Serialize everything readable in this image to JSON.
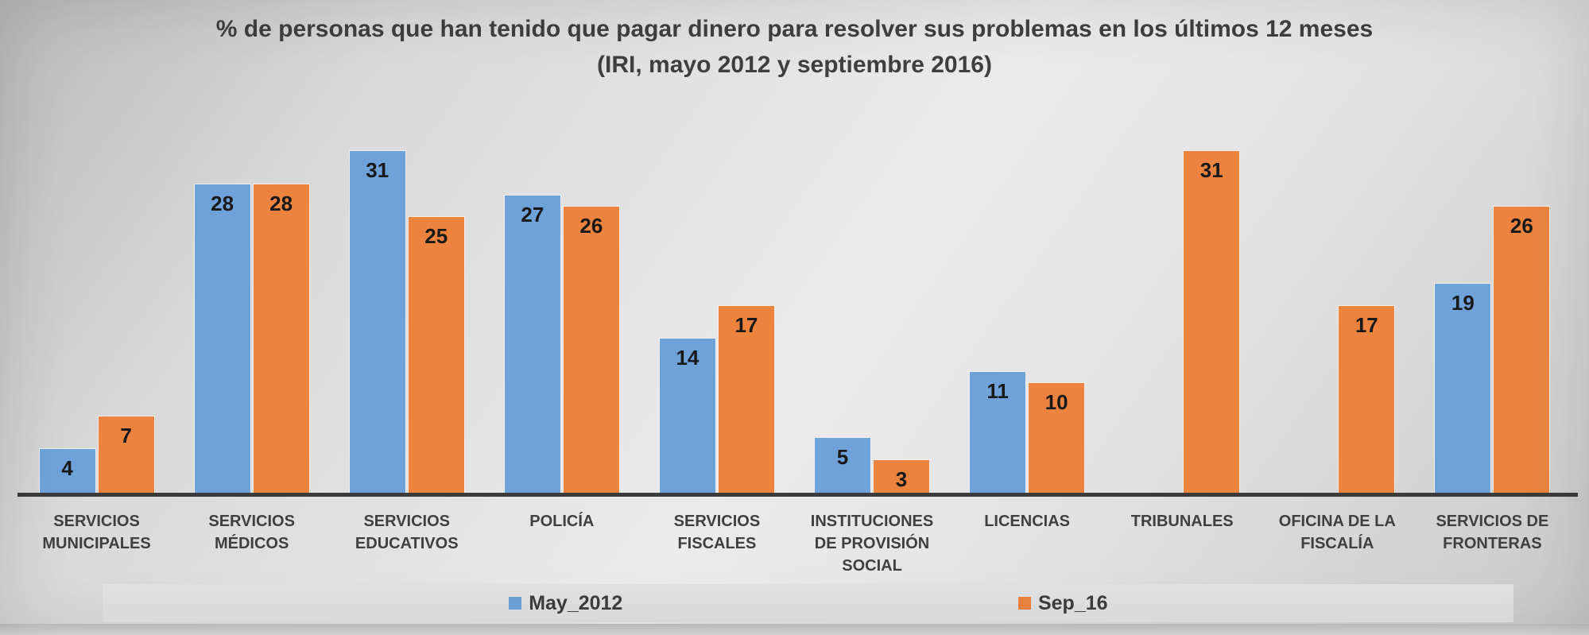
{
  "title": {
    "line1": "% de personas que han tenido que pagar dinero para resolver sus problemas en los últimos 12 meses",
    "line2": "(IRI, mayo 2012 y septiembre 2016)"
  },
  "chart_data": {
    "type": "bar",
    "title": "% de personas que han tenido que pagar dinero para resolver sus problemas en los últimos 12 meses (IRI, mayo 2012 y septiembre 2016)",
    "categories": [
      "SERVICIOS MUNICIPALES",
      "SERVICIOS MÉDICOS",
      "SERVICIOS EDUCATIVOS",
      "POLICÍA",
      "SERVICIOS FISCALES",
      "INSTITUCIONES DE PROVISIÓN SOCIAL",
      "LICENCIAS",
      "TRIBUNALES",
      "OFICINA DE LA FISCALÍA",
      "SERVICIOS DE FRONTERAS"
    ],
    "series": [
      {
        "name": "May_2012",
        "color": "#6EA2D9",
        "values": [
          4,
          28,
          31,
          27,
          14,
          5,
          11,
          null,
          null,
          19
        ]
      },
      {
        "name": "Sep_16",
        "color": "#EC8440",
        "values": [
          7,
          28,
          25,
          26,
          17,
          3,
          10,
          31,
          17,
          26
        ]
      }
    ],
    "ylim": [
      0,
      33
    ],
    "grid": false,
    "y_axis_visible": false,
    "legend_position": "bottom",
    "data_labels": "inside-end",
    "axis_color": "#3B3B3B"
  }
}
